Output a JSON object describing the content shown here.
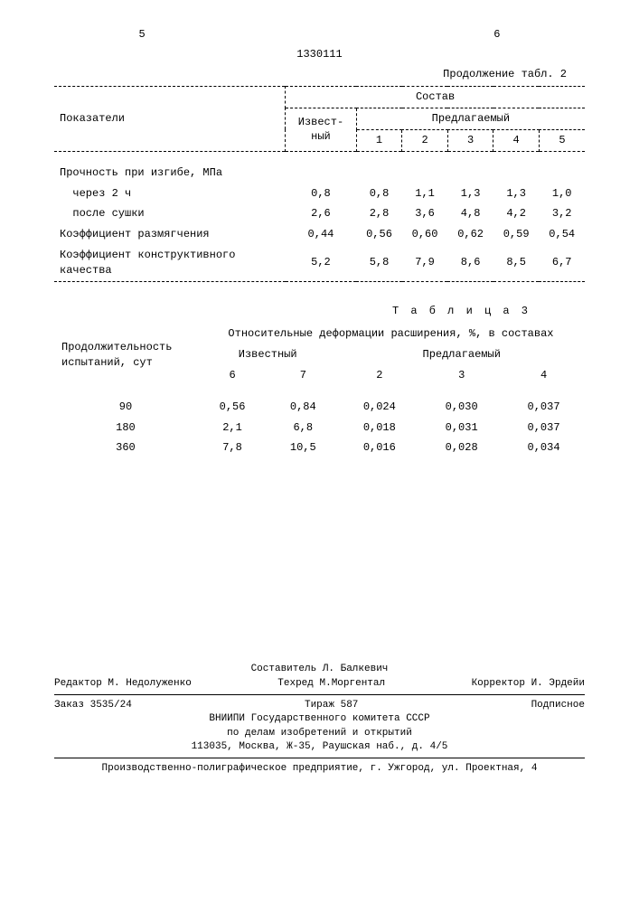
{
  "header": {
    "page_left": "5",
    "page_right": "6",
    "doc_id": "1330111",
    "continuation": "Продолжение табл. 2"
  },
  "table2": {
    "col_header_main": "Показатели",
    "col_group": "Состав",
    "sub_known": "Извест-\nный",
    "sub_proposed": "Предлагаемый",
    "subcols": [
      "1",
      "2",
      "3",
      "4",
      "5"
    ],
    "rows": [
      {
        "label": "Прочность при изгибе, МПа",
        "vals": [
          "",
          "",
          "",
          "",
          "",
          ""
        ]
      },
      {
        "label": "  через 2 ч",
        "vals": [
          "0,8",
          "0,8",
          "1,1",
          "1,3",
          "1,3",
          "1,0"
        ]
      },
      {
        "label": "  после сушки",
        "vals": [
          "2,6",
          "2,8",
          "3,6",
          "4,8",
          "4,2",
          "3,2"
        ]
      },
      {
        "label": "Коэффициент размягчения",
        "vals": [
          "0,44",
          "0,56",
          "0,60",
          "0,62",
          "0,59",
          "0,54"
        ]
      },
      {
        "label": "Коэффициент конструктивного\nкачества",
        "vals": [
          "5,2",
          "5,8",
          "7,9",
          "8,6",
          "8,5",
          "6,7"
        ]
      }
    ]
  },
  "table3": {
    "title": "Т а б л и ц а  3",
    "col_header_main": "Продолжительность\nиспытаний, сут",
    "col_group": "Относительные деформации расширения, %, в составах",
    "sub_known": "Известный",
    "sub_proposed": "Предлагаемый",
    "subcols": [
      "6",
      "7",
      "2",
      "3",
      "4"
    ],
    "rows": [
      {
        "label": "90",
        "vals": [
          "0,56",
          "0,84",
          "0,024",
          "0,030",
          "0,037"
        ]
      },
      {
        "label": "180",
        "vals": [
          "2,1",
          "6,8",
          "0,018",
          "0,031",
          "0,037"
        ]
      },
      {
        "label": "360",
        "vals": [
          "7,8",
          "10,5",
          "0,016",
          "0,028",
          "0,034"
        ]
      }
    ]
  },
  "footer": {
    "compiler": "Составитель Л. Балкевич",
    "editor": "Редактор М. Недолуженко",
    "techred": "Техред М.Моргентал",
    "corrector": "Корректор И. Эрдейи",
    "order": "Заказ 3535/24",
    "tirazh": "Тираж 587",
    "podpisnoe": "Подписное",
    "org1": "ВНИИПИ Государственного комитета СССР",
    "org2": "по делам изобретений и открытий",
    "addr": "113035, Москва, Ж-35, Раушская наб., д. 4/5",
    "printer": "Производственно-полиграфическое предприятие, г. Ужгород, ул. Проектная, 4"
  }
}
